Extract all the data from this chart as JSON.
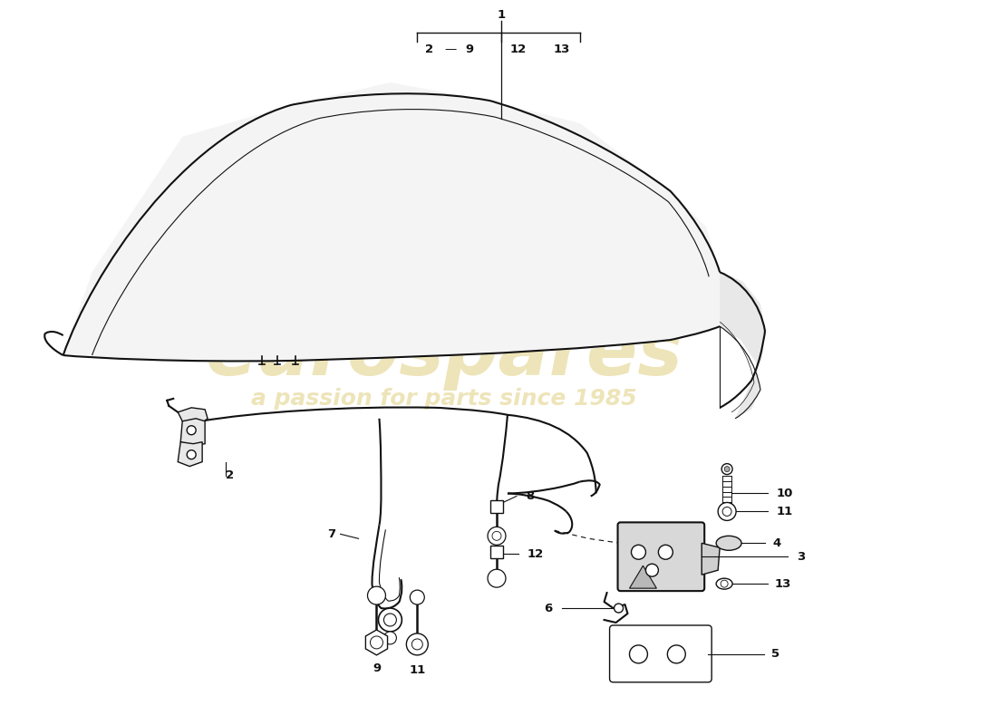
{
  "bg_color": "#ffffff",
  "line_color": "#111111",
  "watermark_color": "#d4bc50",
  "fig_width": 11.0,
  "fig_height": 8.0,
  "dpi": 100,
  "label_fontsize": 9.5
}
